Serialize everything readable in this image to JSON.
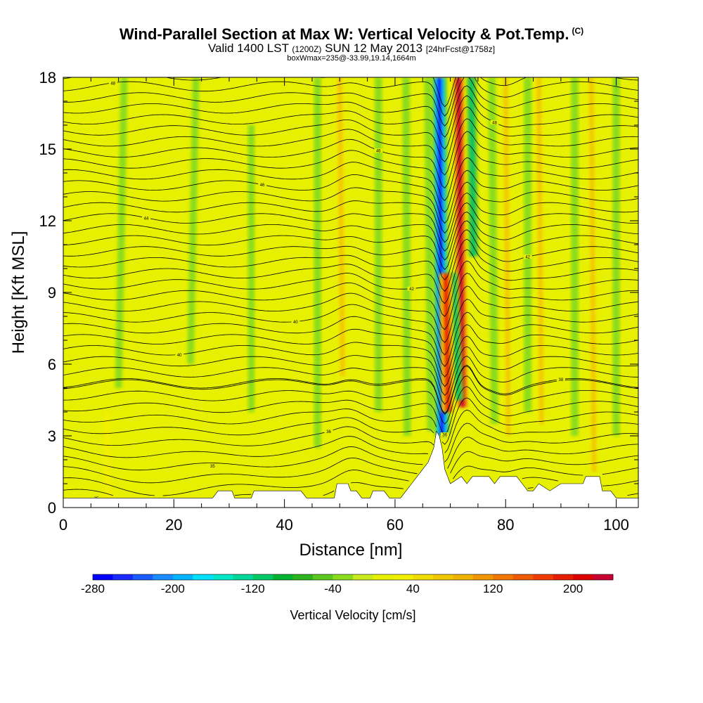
{
  "title": {
    "main": "Wind-Parallel Section at Max W: Vertical Velocity & Pot.Temp.",
    "copyright": "(C)",
    "valid_prefix": "Valid 1400 LST",
    "valid_z": "(1200Z)",
    "valid_date": "SUN 12 May 2013",
    "forecast": "[24hrFcst@1758z]",
    "box_info": "boxWmax=235@-33.99,19.14,1664m"
  },
  "chart_data": {
    "type": "heatmap",
    "xlabel": "Distance [nm]",
    "ylabel": "Height [Kft MSL]",
    "xlim": [
      0,
      104
    ],
    "ylim": [
      0,
      18
    ],
    "x_ticks": [
      0,
      20,
      40,
      60,
      80,
      100
    ],
    "y_ticks": [
      0,
      3,
      6,
      9,
      12,
      15,
      18
    ],
    "colorbar": {
      "label": "Vertical Velocity [cm/s]",
      "min": -280,
      "max": 240,
      "step": 20,
      "tick_values": [
        -280,
        -200,
        -120,
        -40,
        40,
        120,
        200
      ],
      "colors": [
        "#0000ff",
        "#1a2aff",
        "#1a5cff",
        "#1a8cff",
        "#00b4ff",
        "#00e0ff",
        "#00e8c8",
        "#00d89a",
        "#00c864",
        "#00b432",
        "#2db41e",
        "#5ac81e",
        "#8cdc1e",
        "#c8eb1e",
        "#e6f000",
        "#f0f000",
        "#f0dc00",
        "#f0c800",
        "#f0b400",
        "#f09600",
        "#f07800",
        "#f05a00",
        "#f03c00",
        "#e61e00",
        "#dc0000",
        "#c80032"
      ]
    },
    "w_features": [
      {
        "x": 68.5,
        "x_top": 68,
        "y_bottom": 3.0,
        "y_top": 18,
        "w_cm_s": -280
      },
      {
        "x": 72.2,
        "x_top": 71.5,
        "y_bottom": 4.2,
        "y_top": 18,
        "w_cm_s": 230
      },
      {
        "x": 74.2,
        "x_top": 73.8,
        "y_bottom": 10.5,
        "y_top": 18,
        "w_cm_s": -140
      },
      {
        "x": 71.5,
        "x_top": 70.5,
        "y_bottom": 4.5,
        "y_top": 9.8,
        "w_cm_s": -120
      },
      {
        "x": 69.6,
        "x_top": 69.2,
        "y_bottom": 4.0,
        "y_top": 9.8,
        "w_cm_s": 220
      },
      {
        "x": 66.5,
        "x_top": 66.0,
        "y_bottom": 3.2,
        "y_top": 18,
        "w_cm_s": -60
      },
      {
        "x": 62.2,
        "x_top": 62.0,
        "y_bottom": 3.0,
        "y_top": 18,
        "w_cm_s": -50
      },
      {
        "x": 57.0,
        "x_top": 57.0,
        "y_bottom": 4.0,
        "y_top": 18,
        "w_cm_s": -50
      },
      {
        "x": 50.5,
        "x_top": 50.0,
        "y_bottom": 5.5,
        "y_top": 18,
        "w_cm_s": 100
      },
      {
        "x": 46.0,
        "x_top": 46.0,
        "y_bottom": 2.5,
        "y_top": 18,
        "w_cm_s": -45
      },
      {
        "x": 78.0,
        "x_top": 77.5,
        "y_bottom": 3.5,
        "y_top": 18,
        "w_cm_s": -50
      },
      {
        "x": 80.5,
        "x_top": 80.0,
        "y_bottom": 3.0,
        "y_top": 18,
        "w_cm_s": 70
      },
      {
        "x": 84.0,
        "x_top": 84.0,
        "y_bottom": 4.0,
        "y_top": 18,
        "w_cm_s": -55
      },
      {
        "x": 86.5,
        "x_top": 86.0,
        "y_bottom": 3.5,
        "y_top": 18,
        "w_cm_s": 80
      },
      {
        "x": 92.5,
        "x_top": 92.5,
        "y_bottom": 3.0,
        "y_top": 18,
        "w_cm_s": -50
      },
      {
        "x": 96.0,
        "x_top": 95.5,
        "y_bottom": 1.5,
        "y_top": 18,
        "w_cm_s": 80
      },
      {
        "x": 100.0,
        "x_top": 100.0,
        "y_bottom": 3.0,
        "y_top": 18,
        "w_cm_s": -45
      },
      {
        "x": 8.0,
        "x_top": 8.0,
        "y_bottom": 0.3,
        "y_top": 4.0,
        "w_cm_s": 60
      },
      {
        "x": 10.0,
        "x_top": 11.0,
        "y_bottom": 5.0,
        "y_top": 18,
        "w_cm_s": -35
      },
      {
        "x": 34.0,
        "x_top": 34.0,
        "y_bottom": 4.0,
        "y_top": 16.0,
        "w_cm_s": -30
      },
      {
        "x": 23.0,
        "x_top": 24.0,
        "y_bottom": 6.0,
        "y_top": 18,
        "w_cm_s": -30
      }
    ],
    "theta_isentropes": {
      "count": 44,
      "base_height_kft": 0.2,
      "mid_height_kft": 5.2,
      "spacing_above_kft": 0.46,
      "labels": [
        "35",
        "36",
        "38",
        "40",
        "42",
        "44",
        "46",
        "48",
        "50"
      ]
    },
    "terrain_kft": [
      [
        0,
        0.4
      ],
      [
        6,
        0.4
      ],
      [
        13,
        0.4
      ],
      [
        27,
        0.4
      ],
      [
        28,
        0.7
      ],
      [
        30.5,
        0.7
      ],
      [
        31,
        0.4
      ],
      [
        34,
        0.4
      ],
      [
        34.5,
        0.7
      ],
      [
        38,
        0.7
      ],
      [
        43,
        0.7
      ],
      [
        44,
        0.4
      ],
      [
        49,
        0.4
      ],
      [
        49.5,
        1.0
      ],
      [
        51.5,
        1.0
      ],
      [
        52,
        0.7
      ],
      [
        53,
        0.7
      ],
      [
        54,
        0.4
      ],
      [
        55.5,
        0.4
      ],
      [
        56,
        0.7
      ],
      [
        58,
        0.7
      ],
      [
        59,
        0.4
      ],
      [
        61,
        0.4
      ],
      [
        62,
        0.7
      ],
      [
        63,
        1.0
      ],
      [
        64,
        1.3
      ],
      [
        65,
        1.6
      ],
      [
        66,
        1.9
      ],
      [
        66.5,
        2.2
      ],
      [
        67,
        2.5
      ],
      [
        67.5,
        3.2
      ],
      [
        68,
        3.0
      ],
      [
        68.5,
        2.5
      ],
      [
        69,
        1.6
      ],
      [
        69.5,
        1.3
      ],
      [
        70,
        1.0
      ],
      [
        72,
        1.3
      ],
      [
        73,
        1.0
      ],
      [
        74,
        1.3
      ],
      [
        77,
        1.3
      ],
      [
        78,
        1.0
      ],
      [
        79,
        1.3
      ],
      [
        82,
        1.3
      ],
      [
        83,
        1.0
      ],
      [
        84,
        0.7
      ],
      [
        85,
        0.7
      ],
      [
        86,
        1.0
      ],
      [
        88,
        0.7
      ],
      [
        90,
        1.0
      ],
      [
        92,
        1.0
      ],
      [
        94,
        1.0
      ],
      [
        94.5,
        1.3
      ],
      [
        97,
        1.3
      ],
      [
        97.5,
        0.7
      ],
      [
        99,
        0.7
      ],
      [
        100,
        0.4
      ],
      [
        104,
        0.4
      ]
    ]
  }
}
